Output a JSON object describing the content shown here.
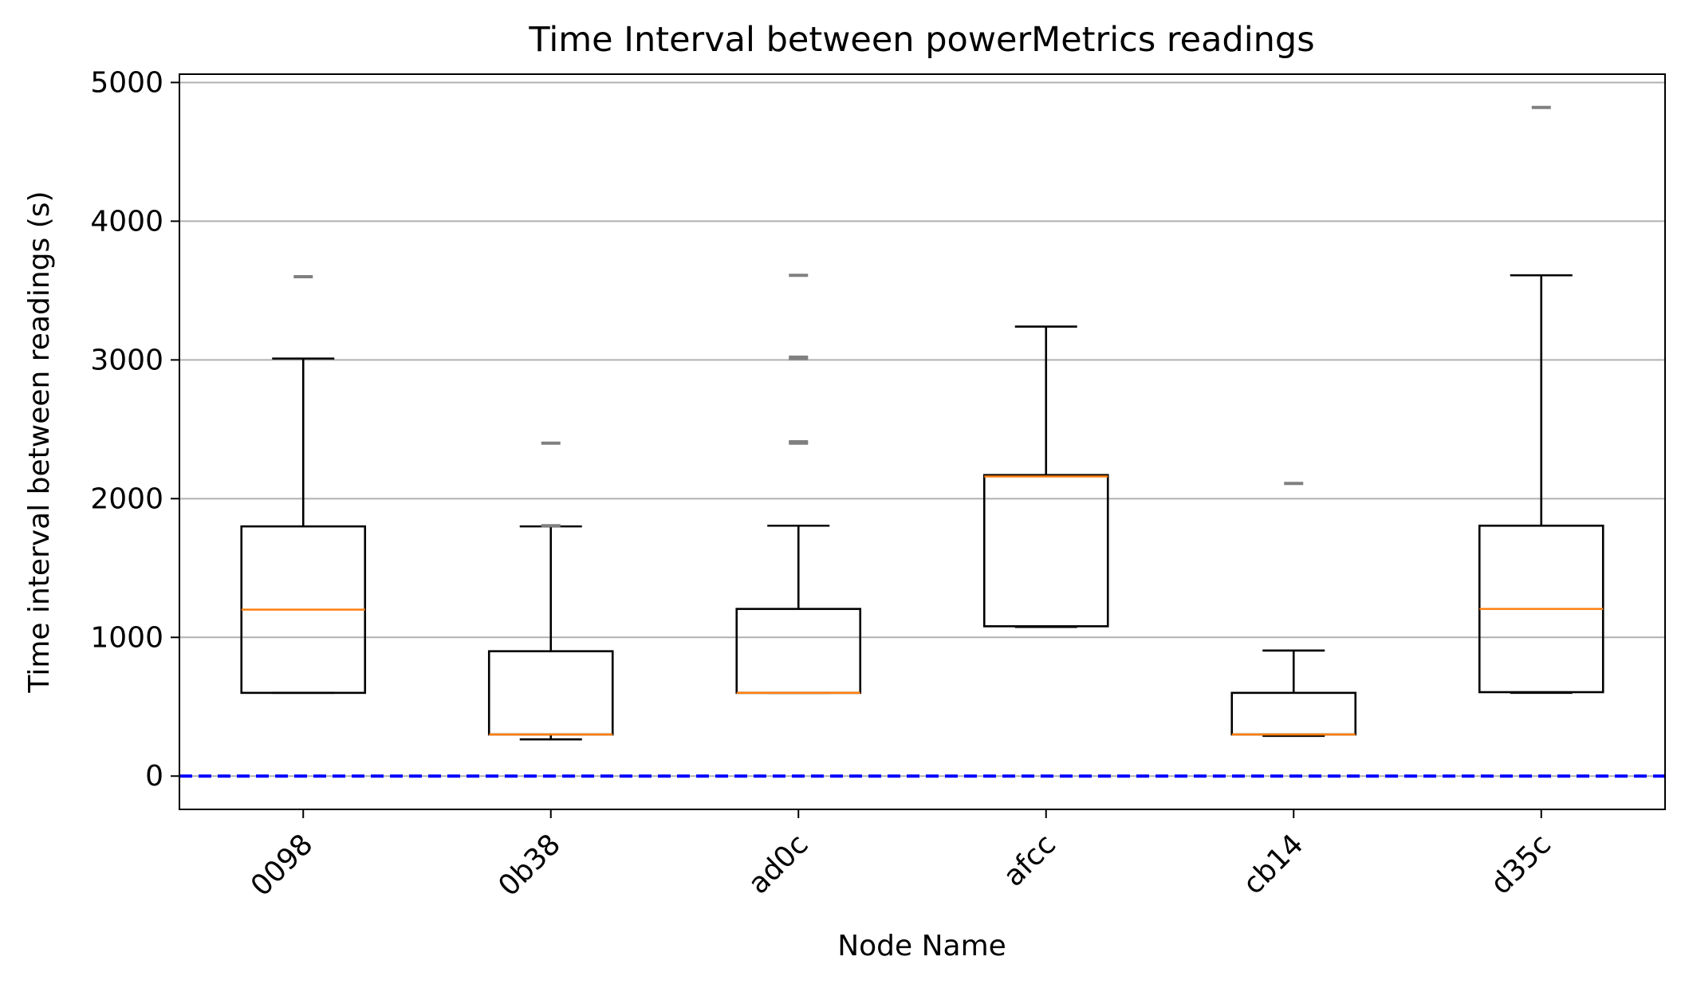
{
  "chart_data": {
    "type": "boxplot",
    "title": "Time Interval between powerMetrics readings",
    "xlabel": "Node Name",
    "ylabel": "Time interval between readings (s)",
    "ylim": [
      -240,
      5060
    ],
    "yticks": [
      0,
      1000,
      2000,
      3000,
      4000,
      5000
    ],
    "grid": "y",
    "reference_line": {
      "y": 0,
      "style": "dashed",
      "color": "#0000ff"
    },
    "categories": [
      "0098",
      "0b38",
      "ad0c",
      "afcc",
      "cb14",
      "d35c"
    ],
    "boxes": [
      {
        "name": "0098",
        "whisker_low": 600,
        "q1": 600,
        "median": 1200,
        "q3": 1800,
        "whisker_high": 3010,
        "outliers": [
          3600
        ]
      },
      {
        "name": "0b38",
        "whisker_low": 265,
        "q1": 300,
        "median": 300,
        "q3": 900,
        "whisker_high": 1800,
        "outliers": [
          2400,
          1805
        ]
      },
      {
        "name": "ad0c",
        "whisker_low": 600,
        "q1": 600,
        "median": 600,
        "q3": 1205,
        "whisker_high": 1805,
        "outliers": [
          2400,
          2410,
          3010,
          3020,
          3610
        ]
      },
      {
        "name": "afcc",
        "whisker_low": 1075,
        "q1": 1080,
        "median": 2160,
        "q3": 2170,
        "whisker_high": 3240,
        "outliers": []
      },
      {
        "name": "cb14",
        "whisker_low": 290,
        "q1": 300,
        "median": 300,
        "q3": 600,
        "whisker_high": 905,
        "outliers": [
          2110
        ]
      },
      {
        "name": "d35c",
        "whisker_low": 600,
        "q1": 605,
        "median": 1205,
        "q3": 1805,
        "whisker_high": 3610,
        "outliers": [
          4820
        ]
      }
    ],
    "colors": {
      "box": "#000000",
      "median": "#ff7f0e",
      "outlier": "#808080",
      "grid": "#b0b0b0",
      "reference": "#0000ff"
    }
  }
}
